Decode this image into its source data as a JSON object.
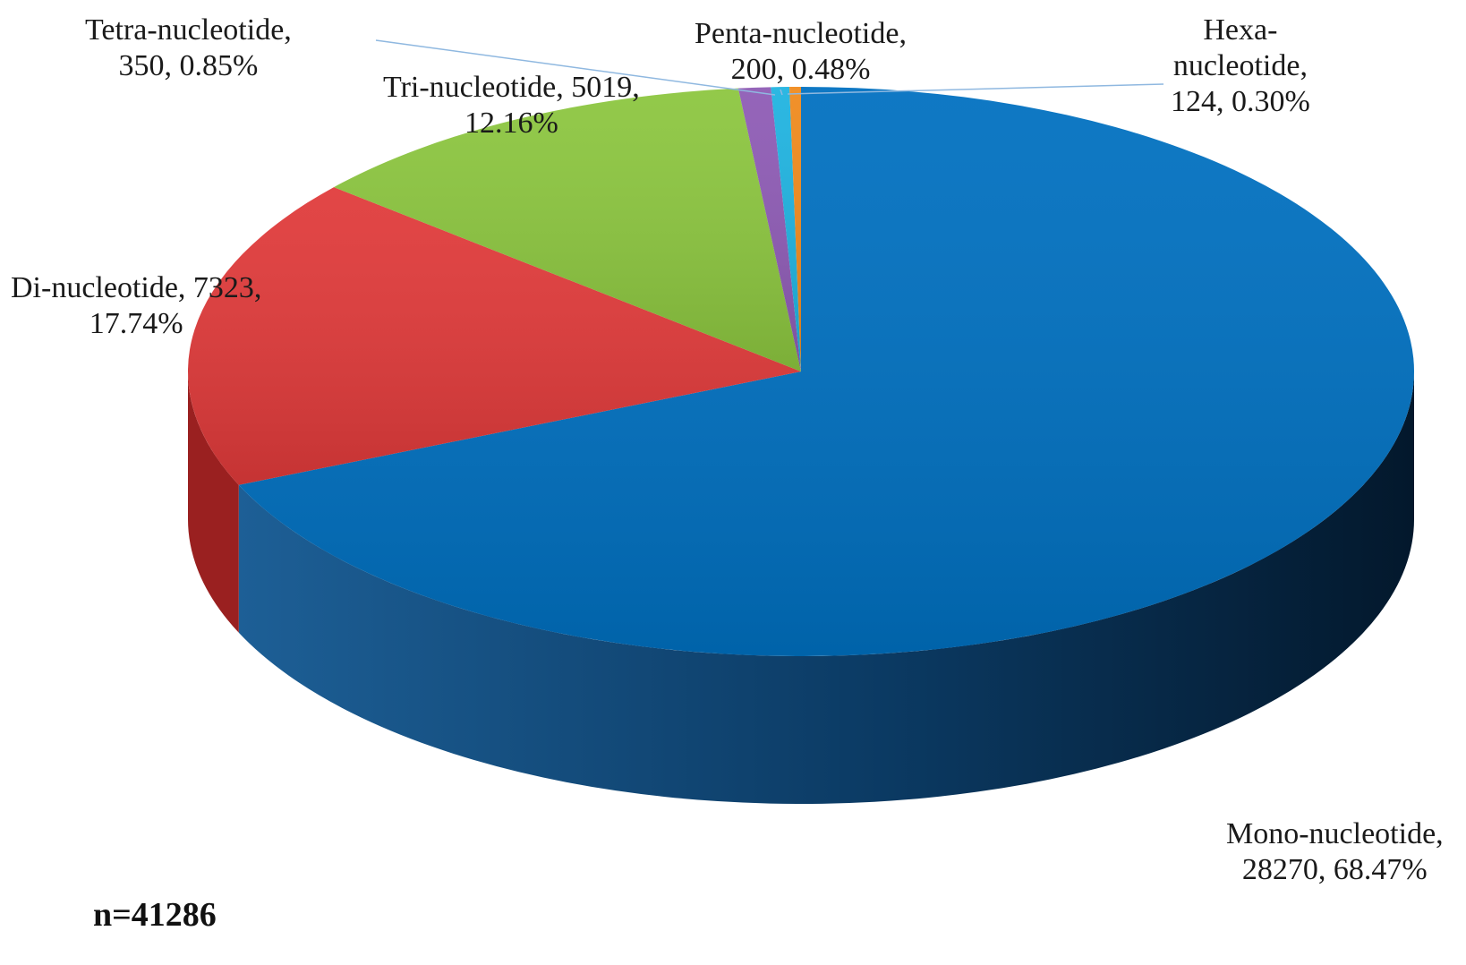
{
  "chart_data": {
    "type": "pie",
    "style": "3d",
    "total_label": "n=41286",
    "slices": [
      {
        "name": "Mono-nucleotide,",
        "count": 28270,
        "percent": 68.47,
        "count_text": "28270, 68.47%",
        "color": "#0070c0",
        "side_color": "#003f70"
      },
      {
        "name": "Di-nucleotide, 7323,",
        "count": 7323,
        "percent": 17.74,
        "count_text": "17.74%",
        "color": "#e03a3a",
        "side_color": "#9a2020"
      },
      {
        "name": "Tri-nucleotide, 5019,",
        "count": 5019,
        "percent": 12.16,
        "count_text": "12.16%",
        "color": "#8cc63f",
        "side_color": "#5a8a24"
      },
      {
        "name": "Tetra-nucleotide,",
        "count": 350,
        "percent": 0.85,
        "count_text": "350, 0.85%",
        "color": "#8e5bb5",
        "side_color": "#5d3980"
      },
      {
        "name": "Penta-nucleotide,",
        "count": 200,
        "percent": 0.48,
        "count_text": "200, 0.48%",
        "color": "#1fb3e0",
        "side_color": "#127a9a"
      },
      {
        "name": "Hexa-",
        "name2": "nucleotide,",
        "count": 124,
        "percent": 0.3,
        "count_text": "124, 0.30%",
        "color": "#f08a1c",
        "side_color": "#a85a0c"
      }
    ]
  }
}
